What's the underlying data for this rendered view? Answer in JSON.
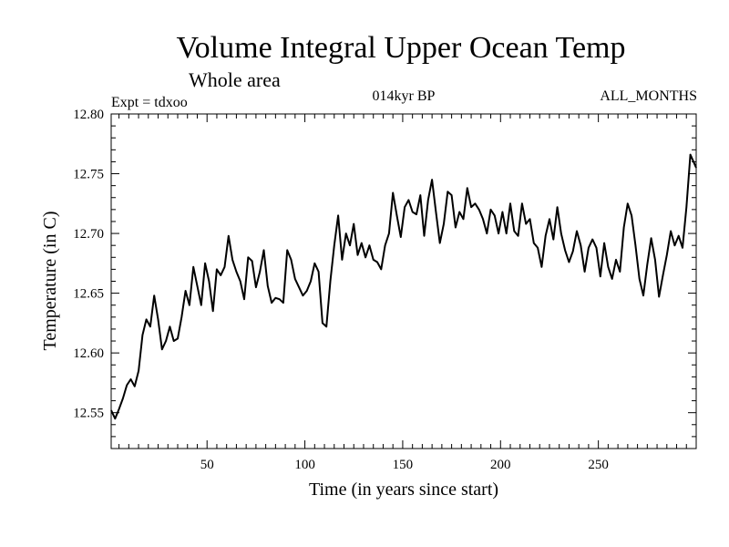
{
  "chart_data": {
    "type": "line",
    "title": "Volume Integral Upper Ocean Temp",
    "subtitle": "Whole area",
    "header_left": "Expt = tdxoo",
    "header_center": "014kyr BP",
    "header_right": "ALL_MONTHS",
    "xlabel": "Time (in years since start)",
    "ylabel": "Temperature (in C)",
    "xlim": [
      1,
      300
    ],
    "ylim": [
      12.52,
      12.8
    ],
    "xticks": [
      50,
      100,
      150,
      200,
      250
    ],
    "yticks": [
      12.55,
      12.6,
      12.65,
      12.7,
      12.75,
      12.8
    ],
    "ytick_labels": [
      "12.55",
      "12.60",
      "12.65",
      "12.70",
      "12.75",
      "12.80"
    ],
    "grid": false,
    "series": [
      {
        "color": "#000000",
        "points": [
          [
            1,
            12.552
          ],
          [
            3,
            12.545
          ],
          [
            5,
            12.553
          ],
          [
            7,
            12.562
          ],
          [
            9,
            12.573
          ],
          [
            11,
            12.578
          ],
          [
            13,
            12.572
          ],
          [
            15,
            12.585
          ],
          [
            17,
            12.615
          ],
          [
            19,
            12.628
          ],
          [
            21,
            12.622
          ],
          [
            23,
            12.648
          ],
          [
            25,
            12.628
          ],
          [
            27,
            12.603
          ],
          [
            29,
            12.61
          ],
          [
            31,
            12.622
          ],
          [
            33,
            12.61
          ],
          [
            35,
            12.612
          ],
          [
            37,
            12.63
          ],
          [
            39,
            12.652
          ],
          [
            41,
            12.64
          ],
          [
            43,
            12.672
          ],
          [
            45,
            12.656
          ],
          [
            47,
            12.64
          ],
          [
            49,
            12.675
          ],
          [
            51,
            12.66
          ],
          [
            53,
            12.635
          ],
          [
            55,
            12.67
          ],
          [
            57,
            12.665
          ],
          [
            59,
            12.672
          ],
          [
            61,
            12.698
          ],
          [
            63,
            12.678
          ],
          [
            65,
            12.668
          ],
          [
            67,
            12.66
          ],
          [
            69,
            12.645
          ],
          [
            71,
            12.68
          ],
          [
            73,
            12.677
          ],
          [
            75,
            12.655
          ],
          [
            77,
            12.668
          ],
          [
            79,
            12.686
          ],
          [
            81,
            12.656
          ],
          [
            83,
            12.642
          ],
          [
            85,
            12.646
          ],
          [
            87,
            12.645
          ],
          [
            89,
            12.642
          ],
          [
            91,
            12.686
          ],
          [
            93,
            12.678
          ],
          [
            95,
            12.662
          ],
          [
            97,
            12.655
          ],
          [
            99,
            12.648
          ],
          [
            101,
            12.652
          ],
          [
            103,
            12.66
          ],
          [
            105,
            12.675
          ],
          [
            107,
            12.668
          ],
          [
            109,
            12.625
          ],
          [
            111,
            12.622
          ],
          [
            113,
            12.66
          ],
          [
            115,
            12.69
          ],
          [
            117,
            12.715
          ],
          [
            119,
            12.678
          ],
          [
            121,
            12.7
          ],
          [
            123,
            12.69
          ],
          [
            125,
            12.708
          ],
          [
            127,
            12.682
          ],
          [
            129,
            12.692
          ],
          [
            131,
            12.68
          ],
          [
            133,
            12.69
          ],
          [
            135,
            12.678
          ],
          [
            137,
            12.676
          ],
          [
            139,
            12.67
          ],
          [
            141,
            12.69
          ],
          [
            143,
            12.7
          ],
          [
            145,
            12.734
          ],
          [
            147,
            12.715
          ],
          [
            149,
            12.697
          ],
          [
            151,
            12.722
          ],
          [
            153,
            12.728
          ],
          [
            155,
            12.718
          ],
          [
            157,
            12.716
          ],
          [
            159,
            12.732
          ],
          [
            161,
            12.698
          ],
          [
            163,
            12.728
          ],
          [
            165,
            12.745
          ],
          [
            167,
            12.718
          ],
          [
            169,
            12.692
          ],
          [
            171,
            12.708
          ],
          [
            173,
            12.735
          ],
          [
            175,
            12.732
          ],
          [
            177,
            12.705
          ],
          [
            179,
            12.718
          ],
          [
            181,
            12.712
          ],
          [
            183,
            12.738
          ],
          [
            185,
            12.722
          ],
          [
            187,
            12.725
          ],
          [
            189,
            12.72
          ],
          [
            191,
            12.712
          ],
          [
            193,
            12.7
          ],
          [
            195,
            12.72
          ],
          [
            197,
            12.715
          ],
          [
            199,
            12.7
          ],
          [
            201,
            12.718
          ],
          [
            203,
            12.7
          ],
          [
            205,
            12.725
          ],
          [
            207,
            12.702
          ],
          [
            209,
            12.698
          ],
          [
            211,
            12.725
          ],
          [
            213,
            12.708
          ],
          [
            215,
            12.712
          ],
          [
            217,
            12.692
          ],
          [
            219,
            12.688
          ],
          [
            221,
            12.672
          ],
          [
            223,
            12.698
          ],
          [
            225,
            12.712
          ],
          [
            227,
            12.695
          ],
          [
            229,
            12.722
          ],
          [
            231,
            12.7
          ],
          [
            233,
            12.686
          ],
          [
            235,
            12.676
          ],
          [
            237,
            12.685
          ],
          [
            239,
            12.702
          ],
          [
            241,
            12.69
          ],
          [
            243,
            12.668
          ],
          [
            245,
            12.688
          ],
          [
            247,
            12.695
          ],
          [
            249,
            12.688
          ],
          [
            251,
            12.664
          ],
          [
            253,
            12.692
          ],
          [
            255,
            12.672
          ],
          [
            257,
            12.662
          ],
          [
            259,
            12.678
          ],
          [
            261,
            12.668
          ],
          [
            263,
            12.705
          ],
          [
            265,
            12.725
          ],
          [
            267,
            12.715
          ],
          [
            269,
            12.69
          ],
          [
            271,
            12.662
          ],
          [
            273,
            12.648
          ],
          [
            275,
            12.674
          ],
          [
            277,
            12.696
          ],
          [
            279,
            12.678
          ],
          [
            281,
            12.647
          ],
          [
            283,
            12.665
          ],
          [
            285,
            12.682
          ],
          [
            287,
            12.702
          ],
          [
            289,
            12.69
          ],
          [
            291,
            12.698
          ],
          [
            293,
            12.688
          ],
          [
            295,
            12.722
          ],
          [
            297,
            12.766
          ],
          [
            300,
            12.755
          ]
        ]
      }
    ]
  }
}
